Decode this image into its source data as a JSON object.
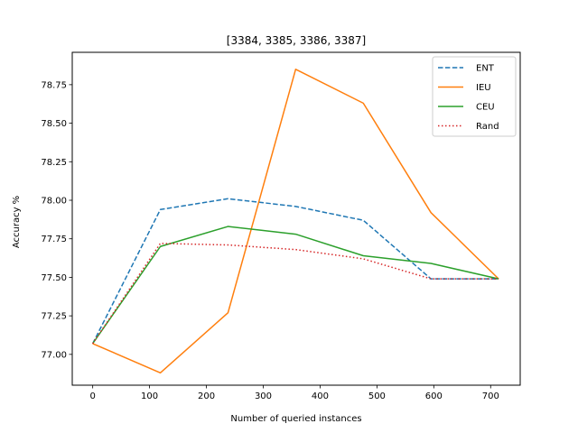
{
  "chart_data": {
    "type": "line",
    "title": "[3384, 3385, 3386, 3387]",
    "xlabel": "Number of queried instances",
    "ylabel": "Accuracy %",
    "xlim": [
      -36,
      752
    ],
    "ylim": [
      76.8,
      78.96
    ],
    "x_ticks": [
      0,
      100,
      200,
      300,
      400,
      500,
      600,
      700
    ],
    "y_ticks": [
      77.0,
      77.25,
      77.5,
      77.75,
      78.0,
      78.25,
      78.5,
      78.75
    ],
    "x_tick_labels": [
      "0",
      "100",
      "200",
      "300",
      "400",
      "500",
      "600",
      "700"
    ],
    "y_tick_labels": [
      "77.00",
      "77.25",
      "77.50",
      "77.75",
      "78.00",
      "78.25",
      "78.50",
      "78.75"
    ],
    "grid": false,
    "legend_position": "top-right",
    "x": [
      0,
      119,
      238,
      357,
      476,
      595,
      714
    ],
    "series": [
      {
        "name": "ENT",
        "color": "#1f77b4",
        "dash": "dashed",
        "values": [
          77.07,
          77.94,
          78.01,
          77.96,
          77.87,
          77.49,
          77.49
        ]
      },
      {
        "name": "IEU",
        "color": "#ff7f0e",
        "dash": "solid",
        "values": [
          77.07,
          76.88,
          77.27,
          78.85,
          78.63,
          77.92,
          77.49
        ]
      },
      {
        "name": "CEU",
        "color": "#2ca02c",
        "dash": "solid",
        "values": [
          77.07,
          77.7,
          77.83,
          77.78,
          77.64,
          77.59,
          77.49
        ]
      },
      {
        "name": "Rand",
        "color": "#d62728",
        "dash": "dotted",
        "values": [
          77.07,
          77.72,
          77.71,
          77.68,
          77.62,
          77.49,
          77.49
        ]
      }
    ]
  }
}
